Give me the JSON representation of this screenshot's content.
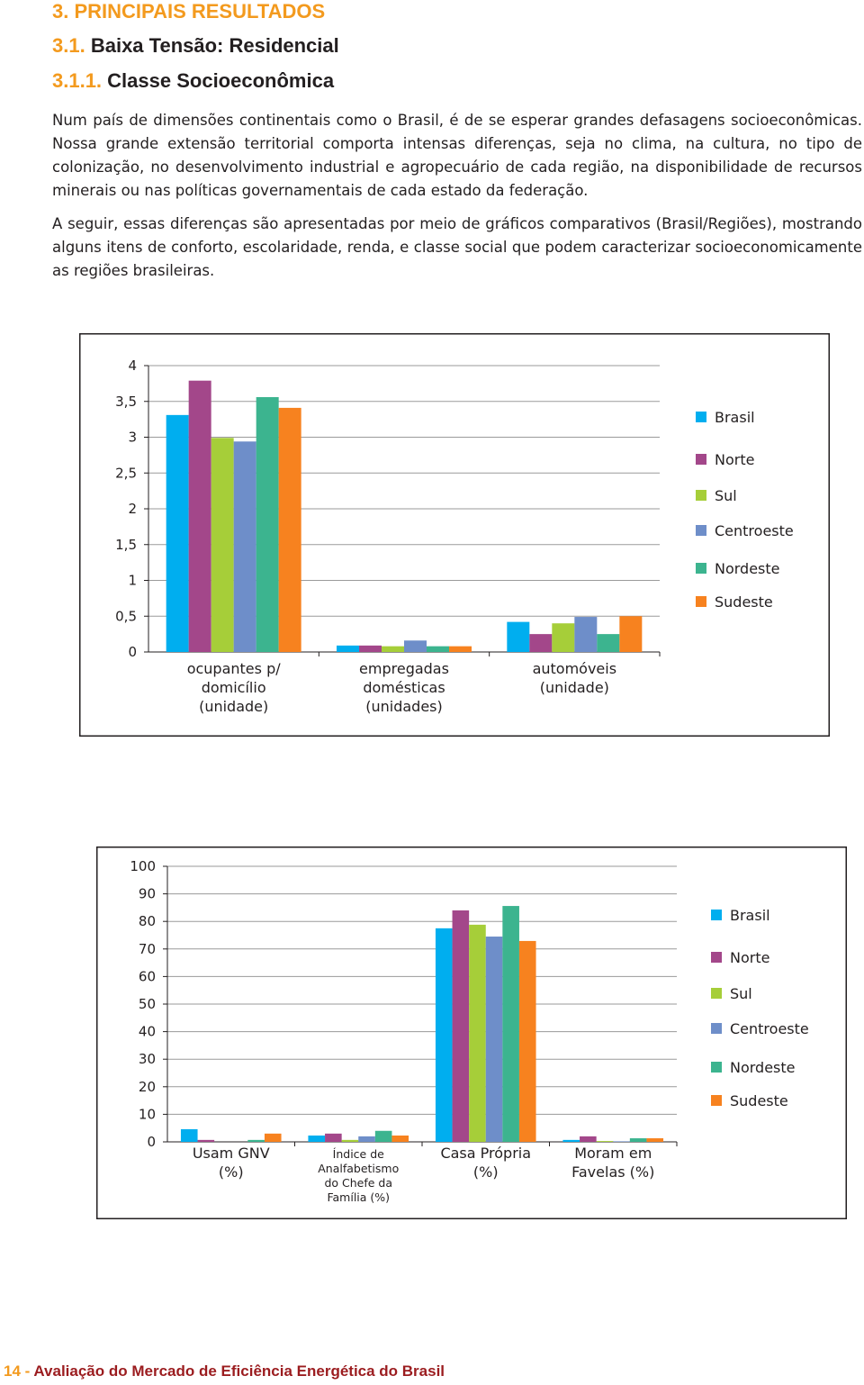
{
  "headings": {
    "h1": {
      "number": "3.",
      "text": "PRINCIPAIS RESULTADOS"
    },
    "h2": {
      "number": "3.1.",
      "text": "Baixa Tensão: Residencial"
    },
    "h3": {
      "number": "3.1.1.",
      "text": "Classe Socioeconômica"
    }
  },
  "paragraphs": [
    "Num país de dimensões continentais como o Brasil, é de se esperar grandes defasagens socioeconômicas. Nossa grande extensão territorial comporta intensas diferenças, seja no clima, na cultura, no tipo de colonização, no desenvolvimento industrial e agropecuário de cada região, na disponibilidade de recursos minerais ou nas políticas governamentais de cada estado da federação.",
    "A seguir, essas diferenças são apresentadas por meio de gráficos comparativos (Brasil/Regiões), mostrando alguns itens de conforto, escolaridade, renda, e classe social que podem caracterizar socioeconomicamente as regiões brasileiras."
  ],
  "chart_data": [
    {
      "type": "bar",
      "categories": [
        [
          "ocupantes p/",
          "domicílio",
          "(unidade)"
        ],
        [
          "empregadas",
          "domésticas",
          "(unidades)"
        ],
        [
          "automóveis",
          "(unidade)"
        ]
      ],
      "series": [
        {
          "name": "Brasil",
          "color": "#00aeef",
          "values": [
            3.31,
            0.09,
            0.42
          ]
        },
        {
          "name": "Norte",
          "color": "#a3478a",
          "values": [
            3.79,
            0.09,
            0.25
          ]
        },
        {
          "name": "Sul",
          "color": "#a6ce39",
          "values": [
            2.99,
            0.08,
            0.4
          ]
        },
        {
          "name": "Centroeste",
          "color": "#6e8ec9",
          "values": [
            2.94,
            0.16,
            0.49
          ]
        },
        {
          "name": "Nordeste",
          "color": "#3cb48f",
          "values": [
            3.56,
            0.08,
            0.25
          ]
        },
        {
          "name": "Sudeste",
          "color": "#f7821f",
          "values": [
            3.41,
            0.08,
            0.5
          ]
        }
      ],
      "ylim": [
        0,
        4
      ],
      "yticks": [
        0,
        {
          "value": 0.5,
          "label": "0,5"
        },
        1,
        {
          "value": 1.5,
          "label": "1,5"
        },
        2,
        {
          "value": 2.5,
          "label": "2,5"
        },
        3,
        {
          "value": 3.5,
          "label": "3,5"
        },
        4
      ],
      "grid": true,
      "legend": "right"
    },
    {
      "type": "bar",
      "categories": [
        [
          "Usam GNV",
          "(%)"
        ],
        [
          "Índice de",
          "Analfabetismo",
          "do Chefe da",
          "Família (%)"
        ],
        [
          "Casa Própria",
          "(%)"
        ],
        [
          "Moram em",
          "Favelas  (%)"
        ]
      ],
      "series": [
        {
          "name": "Brasil",
          "color": "#00aeef",
          "values": [
            4.6,
            2.3,
            77.5,
            0.7
          ]
        },
        {
          "name": "Norte",
          "color": "#a3478a",
          "values": [
            0.7,
            3,
            84,
            2
          ]
        },
        {
          "name": "Sul",
          "color": "#a6ce39",
          "values": [
            0,
            0.7,
            78.8,
            0.3
          ]
        },
        {
          "name": "Centroeste",
          "color": "#6e8ec9",
          "values": [
            0,
            2,
            74.5,
            0.2
          ]
        },
        {
          "name": "Nordeste",
          "color": "#3cb48f",
          "values": [
            0.7,
            4,
            85.6,
            1.3
          ]
        },
        {
          "name": "Sudeste",
          "color": "#f7821f",
          "values": [
            3,
            2.3,
            72.9,
            1.3
          ]
        }
      ],
      "ylim": [
        0,
        100
      ],
      "yticks": [
        0,
        10,
        20,
        30,
        40,
        50,
        60,
        70,
        80,
        90,
        100
      ],
      "grid": true,
      "legend": "right"
    }
  ],
  "footer": {
    "page": "14 -",
    "text": "Avaliação do Mercado de Eficiência Energética do Brasil"
  }
}
